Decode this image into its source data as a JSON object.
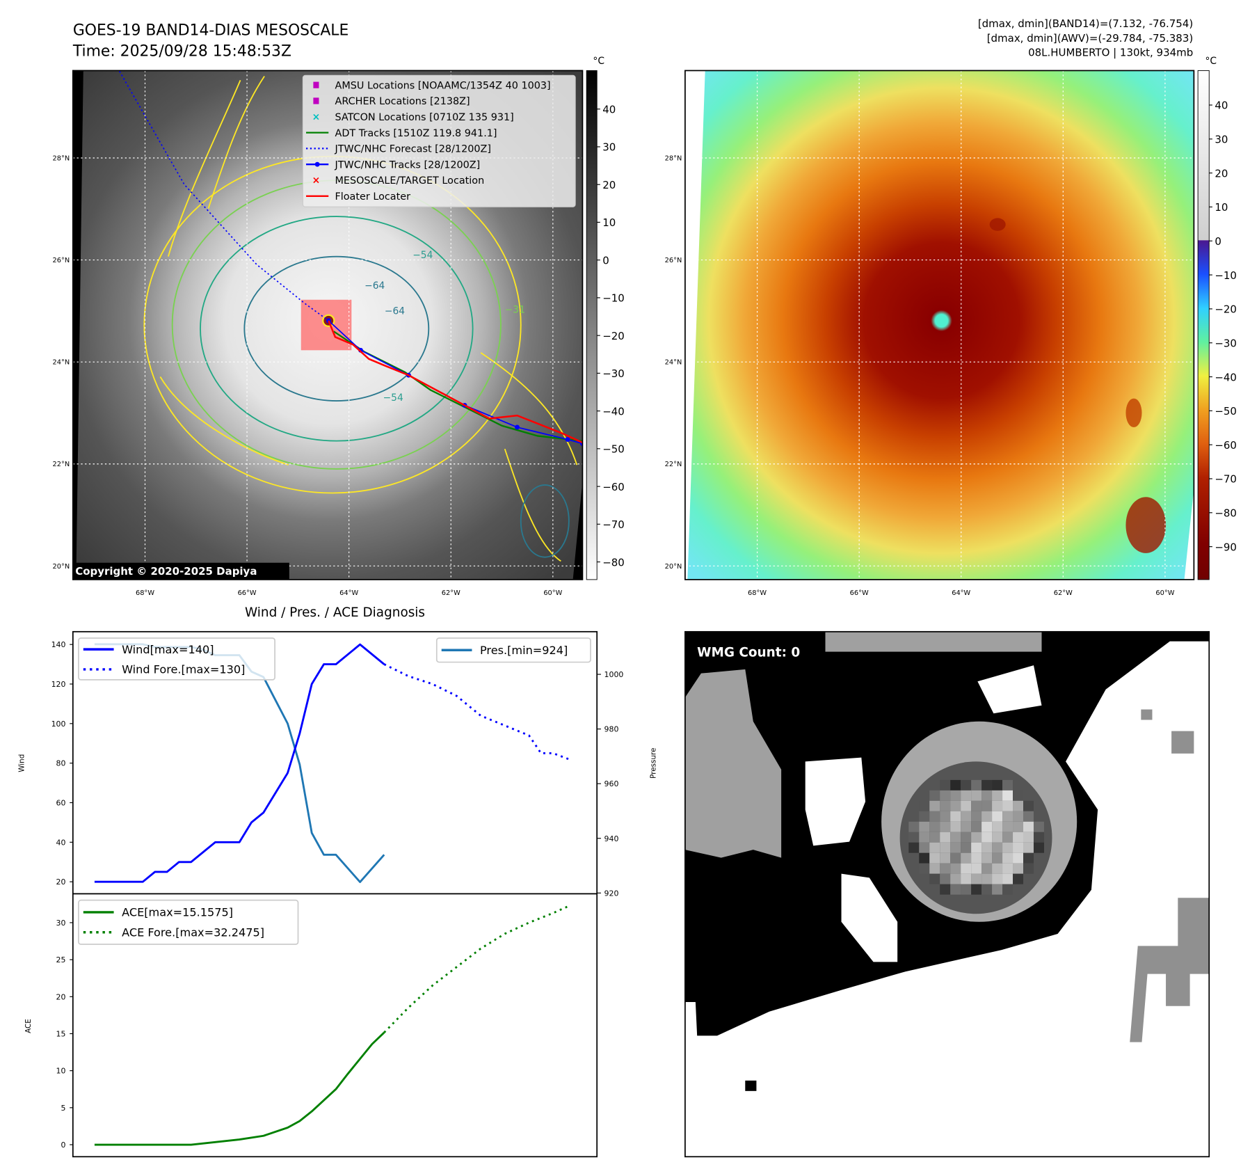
{
  "header": {
    "title": "GOES-19 BAND14-DIAS MESOSCALE",
    "time": "Time: 2025/09/28 15:48:53Z",
    "stats_band14": "[dmax, dmin](BAND14)=(7.132, -76.754)",
    "stats_awv": "[dmax, dmin](AWV)=(-29.784, -75.383)",
    "storm": "08L.HUMBERTO | 130kt, 934mb"
  },
  "ir_map": {
    "colorbar_unit": "°C",
    "colorbar_ticks": [
      "40",
      "30",
      "20",
      "10",
      "0",
      "−10",
      "−20",
      "−30",
      "−40",
      "−50",
      "−60",
      "−70",
      "−80"
    ],
    "colorbar_values": [
      40,
      30,
      20,
      10,
      0,
      -10,
      -20,
      -30,
      -40,
      -50,
      -60,
      -70,
      -80
    ],
    "lat_labels": [
      "28°N",
      "26°N",
      "24°N",
      "22°N",
      "20°N"
    ],
    "lon_labels": [
      "68°W",
      "66°W",
      "64°W",
      "62°W",
      "60°W"
    ],
    "copyright": "Copyright © 2020-2025 Dapiya",
    "contour_labels": [
      "−54",
      "−64",
      "−64",
      "−54",
      "−31"
    ],
    "legend": [
      {
        "label": "AMSU Locations [NOAAMC/1354Z 40 1003]",
        "color": "#c000c0",
        "marker": "square"
      },
      {
        "label": "ARCHER Locations [2138Z]",
        "color": "#c000c0",
        "marker": "square"
      },
      {
        "label": "SATCON Locations [0710Z 135 931]",
        "color": "#00c0c0",
        "marker": "x"
      },
      {
        "label": "ADT Tracks [1510Z 119.8 941.1]",
        "color": "#008000",
        "marker": "line"
      },
      {
        "label": "JTWC/NHC Forecast [28/1200Z]",
        "color": "#0000ff",
        "marker": "dotted"
      },
      {
        "label": "JTWC/NHC Tracks [28/1200Z]",
        "color": "#0000ff",
        "marker": "line-dot"
      },
      {
        "label": "MESOSCALE/TARGET Location",
        "color": "#ff0000",
        "marker": "x"
      },
      {
        "label": "Floater Locater",
        "color": "#ff0000",
        "marker": "line"
      }
    ],
    "tracks": {
      "forecast": [
        [
          -68.5,
          29.7
        ],
        [
          -67.23,
          27.48
        ],
        [
          -65.81,
          25.91
        ],
        [
          -64.87,
          25.15
        ],
        [
          -64.4,
          24.81
        ]
      ],
      "jtwc": [
        [
          -64.4,
          24.81
        ],
        [
          -63.77,
          24.23
        ],
        [
          -62.83,
          23.74
        ],
        [
          -61.73,
          23.15
        ],
        [
          -60.7,
          22.72
        ],
        [
          -59.71,
          22.48
        ],
        [
          -59.42,
          22.4
        ]
      ],
      "adt": [
        [
          -64.3,
          24.6
        ],
        [
          -63.7,
          24.2
        ],
        [
          -62.9,
          23.8
        ],
        [
          -62.4,
          23.45
        ],
        [
          -61.7,
          23.1
        ],
        [
          -61.0,
          22.75
        ],
        [
          -60.3,
          22.55
        ],
        [
          -59.42,
          22.45
        ]
      ],
      "floater": [
        [
          -64.4,
          24.81
        ],
        [
          -64.27,
          24.49
        ],
        [
          -63.92,
          24.34
        ],
        [
          -63.61,
          24.06
        ],
        [
          -63.3,
          23.93
        ],
        [
          -62.83,
          23.74
        ],
        [
          -61.73,
          23.15
        ],
        [
          -61.25,
          22.89
        ],
        [
          -60.7,
          22.95
        ],
        [
          -59.84,
          22.61
        ],
        [
          -59.42,
          22.42
        ]
      ],
      "target_box": [
        [
          -64.94,
          25.22
        ],
        [
          -63.95,
          24.23
        ]
      ]
    }
  },
  "awv_map": {
    "colorbar_unit": "°C",
    "colorbar_ticks": [
      "40",
      "30",
      "20",
      "10",
      "0",
      "−10",
      "−20",
      "−30",
      "−40",
      "−50",
      "−60",
      "−70",
      "−80",
      "−90"
    ],
    "colorbar_values": [
      40,
      30,
      20,
      10,
      0,
      -10,
      -20,
      -30,
      -40,
      -50,
      -60,
      -70,
      -80,
      -90
    ],
    "lat_labels": [
      "28°N",
      "26°N",
      "24°N",
      "22°N",
      "20°N"
    ],
    "lon_labels": [
      "68°W",
      "66°W",
      "64°W",
      "62°W",
      "60°W"
    ]
  },
  "wmg": {
    "count_label": "WMG Count: 0"
  },
  "chart_data": [
    {
      "type": "line",
      "title": "Wind / Pres. / ACE Diagnosis",
      "ylabel": "Wind",
      "ylabel_right": "Pressure",
      "ylim": [
        14,
        145
      ],
      "ylim_right": [
        919.6,
        1014.8
      ],
      "yticks": [
        20,
        40,
        60,
        80,
        100,
        120,
        140
      ],
      "yticks_right": [
        920,
        940,
        960,
        980,
        1000
      ],
      "series": [
        {
          "name": "Wind[max=140]",
          "axis": "left",
          "color": "#0000ff",
          "style": "solid",
          "x": [
            0,
            4,
            5,
            6,
            7,
            8,
            10,
            12,
            13,
            14,
            16,
            17,
            18,
            19,
            20,
            22,
            24
          ],
          "values": [
            20,
            20,
            25,
            25,
            30,
            30,
            40,
            40,
            50,
            55,
            75,
            95,
            120,
            130,
            130,
            140,
            130
          ]
        },
        {
          "name": "Wind Fore.[max=130]",
          "axis": "left",
          "color": "#0000ff",
          "style": "dotted",
          "x": [
            24,
            26,
            28,
            30,
            32,
            34,
            36,
            37,
            38,
            39.3
          ],
          "values": [
            130,
            124,
            120,
            114,
            104,
            99,
            94,
            85,
            85,
            82
          ]
        },
        {
          "name": "Pres.[min=924]",
          "axis": "right",
          "color": "#1f77b4",
          "style": "solid",
          "x": [
            0,
            4,
            5,
            8,
            9,
            10,
            12,
            13,
            14,
            16,
            17,
            18,
            19,
            20,
            22,
            24
          ],
          "values": [
            1011,
            1011,
            1010,
            1010,
            1009,
            1007,
            1007,
            1001,
            999,
            982,
            967,
            942,
            934,
            934,
            924,
            934
          ]
        }
      ]
    },
    {
      "type": "line",
      "ylabel": "ACE",
      "ylim": [
        -1.8,
        33.9
      ],
      "yticks": [
        0,
        5,
        10,
        15,
        20,
        25,
        30
      ],
      "series": [
        {
          "name": "ACE[max=15.1575]",
          "color": "#008000",
          "style": "solid",
          "x": [
            0,
            8,
            10,
            12,
            14,
            16,
            17,
            18,
            20,
            21,
            22,
            23,
            24
          ],
          "values": [
            0,
            0,
            0.35,
            0.7,
            1.2,
            2.3,
            3.2,
            4.5,
            7.5,
            9.6,
            11.6,
            13.6,
            15.16
          ]
        },
        {
          "name": "ACE Fore.[max=32.2475]",
          "color": "#008000",
          "style": "dotted",
          "x": [
            24,
            26,
            28,
            30,
            32,
            34,
            36,
            38,
            39.3
          ],
          "values": [
            15.16,
            18.5,
            21.5,
            24,
            26.5,
            28.5,
            30,
            31.3,
            32.25
          ]
        }
      ]
    }
  ]
}
